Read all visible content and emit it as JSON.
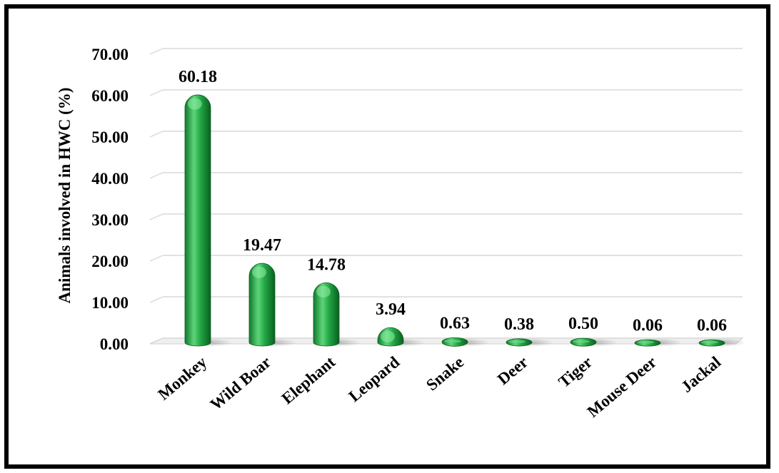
{
  "chart_data": {
    "type": "bar",
    "title": "",
    "xlabel": "",
    "ylabel": "Animals involved in HWC (%)",
    "categories": [
      "Monkey",
      "Wild Boar",
      "Elephant",
      "Leopard",
      "Snake",
      "Deer",
      "Tiger",
      "Mouse Deer",
      "Jackal"
    ],
    "values": [
      60.18,
      19.47,
      14.78,
      3.94,
      0.63,
      0.38,
      0.5,
      0.06,
      0.06
    ],
    "value_labels": [
      "60.18",
      "19.47",
      "14.78",
      "3.94",
      "0.63",
      "0.38",
      "0.50",
      "0.06",
      "0.06"
    ],
    "ylim": [
      0,
      70
    ],
    "yticks": [
      "0.00",
      "10.00",
      "20.00",
      "30.00",
      "40.00",
      "50.00",
      "60.00",
      "70.00"
    ],
    "grid": true,
    "legend": "none",
    "colors": {
      "bar": "#1e9e3e",
      "bar_light": "#6fdc87",
      "bar_dark": "#0b6a25",
      "grid": "#d9d9d9"
    }
  }
}
